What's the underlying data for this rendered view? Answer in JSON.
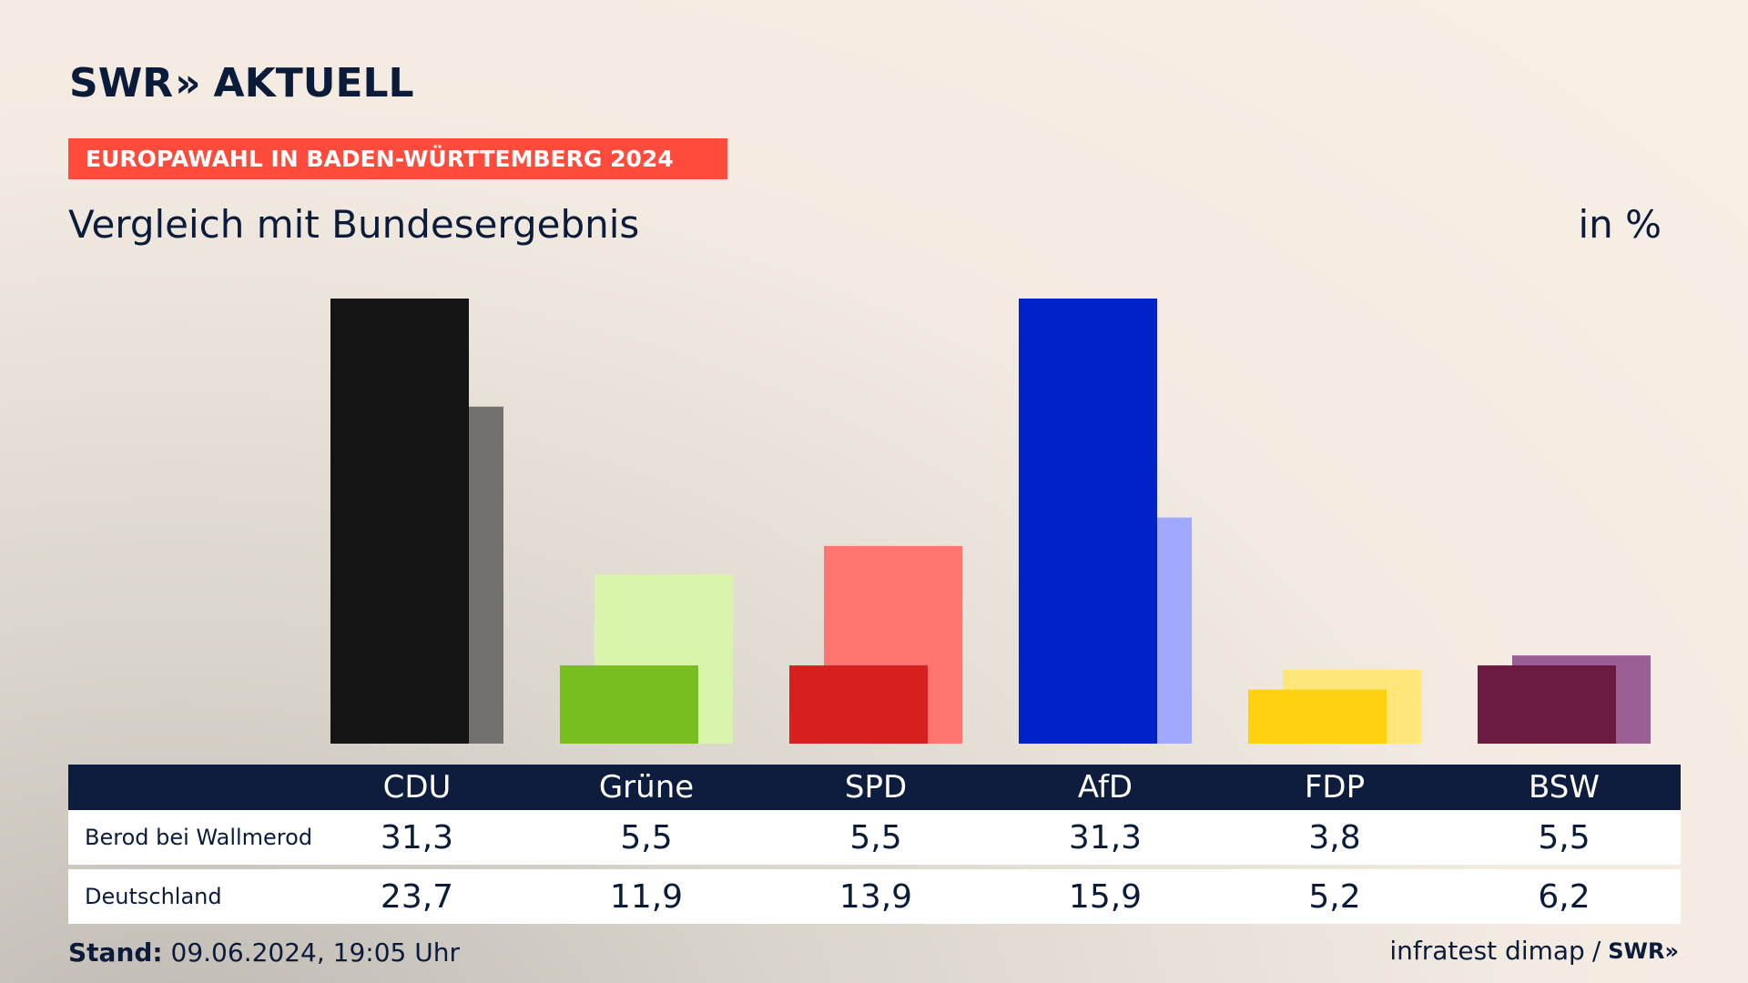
{
  "header": {
    "logo_swr": "SWR",
    "logo_arrows": "»",
    "logo_aktuell": "AKTUELL",
    "banner": "EUROPAWAHL IN BADEN-WÜRTTEMBERG 2024",
    "subtitle": "Vergleich mit Bundesergebnis",
    "unit": "in %"
  },
  "table": {
    "row_labels": [
      "Berod bei Wallmerod",
      "Deutschland"
    ]
  },
  "footer": {
    "stand_label": "Stand:",
    "stand_value": "09.06.2024, 19:05 Uhr",
    "source": "infratest dimap",
    "separator": "/",
    "source_logo": "SWR»"
  },
  "chart_data": {
    "type": "bar",
    "title": "Vergleich mit Bundesergebnis",
    "ylabel": "in %",
    "categories": [
      "CDU",
      "Grüne",
      "SPD",
      "AfD",
      "FDP",
      "BSW"
    ],
    "series": [
      {
        "name": "Berod bei Wallmerod",
        "values": [
          31.3,
          5.5,
          5.5,
          31.3,
          3.8,
          5.5
        ]
      },
      {
        "name": "Deutschland",
        "values": [
          23.7,
          11.9,
          13.9,
          15.9,
          5.2,
          6.2
        ]
      }
    ],
    "display_values": [
      [
        "31,3",
        "5,5",
        "5,5",
        "31,3",
        "3,8",
        "5,5"
      ],
      [
        "23,7",
        "11,9",
        "13,9",
        "15,9",
        "5,2",
        "6,2"
      ]
    ],
    "colors_primary": [
      "#141414",
      "#78be1e",
      "#d81f1f",
      "#0022c8",
      "#ffd00f",
      "#6b1a40"
    ],
    "colors_secondary": [
      "#727170",
      "#d9f5ab",
      "#ff7570",
      "#a0a8ff",
      "#ffe57a",
      "#9b5e95"
    ],
    "ylim": [
      0,
      31.3
    ]
  }
}
